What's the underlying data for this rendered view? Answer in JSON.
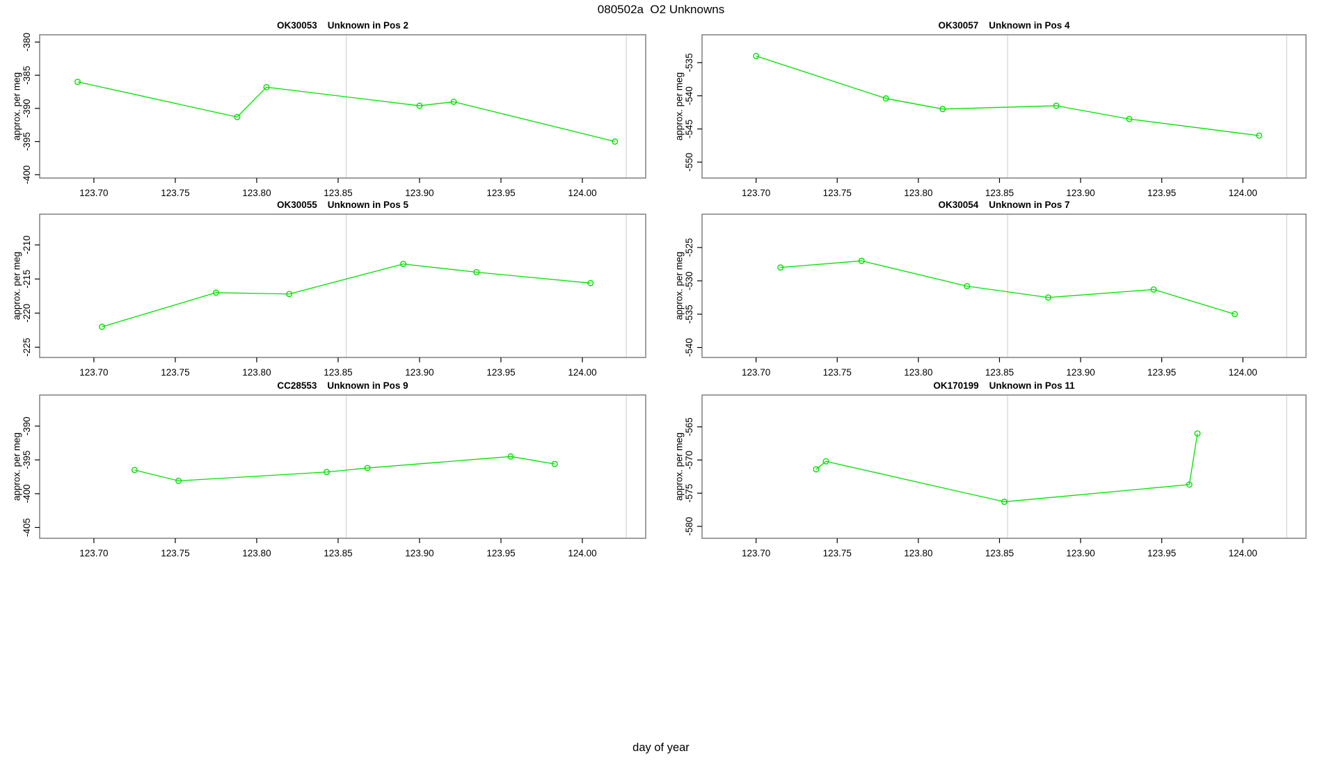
{
  "page_title": "080502a  O2 Unknowns",
  "x_axis_label": "day of year",
  "colors": {
    "series": "#00e100",
    "refline": "#d6d6d6",
    "box": "#878787",
    "tick": "#000000",
    "background": "#ffffff"
  },
  "x_axis": {
    "range": [
      123.6667,
      124.0389
    ],
    "ticks": [
      123.7,
      123.75,
      123.8,
      123.85,
      123.9,
      123.95,
      124.0
    ],
    "tick_labels": [
      "123.70",
      "123.75",
      "123.80",
      "123.85",
      "123.90",
      "123.95",
      "124.00"
    ],
    "reference_lines": [
      123.855,
      124.027
    ]
  },
  "chart_data": [
    {
      "type": "line",
      "sample_id": "OK30053",
      "position": "Unknown in Pos 2",
      "title": "OK30053    Unknown in Pos 2",
      "ylabel": "approx. per meg",
      "y_range": [
        -400.5,
        -378.9
      ],
      "y_ticks": [
        -380,
        -385,
        -390,
        -395,
        -400
      ],
      "y_tick_labels": [
        "-380",
        "-385",
        "-390",
        "-395",
        "-400"
      ],
      "x": [
        123.69,
        123.788,
        123.806,
        123.9,
        123.921,
        124.02
      ],
      "y": [
        -386.0,
        -391.3,
        -386.8,
        -389.6,
        -389.0,
        -395.0
      ]
    },
    {
      "type": "line",
      "sample_id": "OK30057",
      "position": "Unknown in Pos 4",
      "title": "OK30057    Unknown in Pos 4",
      "ylabel": "approx. per meg",
      "y_range": [
        -552.4,
        -530.8
      ],
      "y_ticks": [
        -535,
        -540,
        -545,
        -550
      ],
      "y_tick_labels": [
        "-535",
        "-540",
        "-545",
        "-550"
      ],
      "x": [
        123.7,
        123.78,
        123.815,
        123.885,
        123.93,
        124.01
      ],
      "y": [
        -534.0,
        -540.4,
        -542.0,
        -541.5,
        -543.5,
        -546.0
      ]
    },
    {
      "type": "line",
      "sample_id": "OK30055",
      "position": "Unknown in Pos 5",
      "title": "OK30055    Unknown in Pos 5",
      "ylabel": "approx. per meg",
      "y_range": [
        -226.5,
        -205.5
      ],
      "y_ticks": [
        -210,
        -215,
        -220,
        -225
      ],
      "y_tick_labels": [
        "-210",
        "-215",
        "-220",
        "-225"
      ],
      "x": [
        123.705,
        123.775,
        123.82,
        123.89,
        123.935,
        124.005
      ],
      "y": [
        -222.0,
        -217.0,
        -217.2,
        -212.8,
        -214.0,
        -215.6
      ]
    },
    {
      "type": "line",
      "sample_id": "OK30054",
      "position": "Unknown in Pos 7",
      "title": "OK30054    Unknown in Pos 7",
      "ylabel": "approx. per meg",
      "y_range": [
        -541.5,
        -520.0
      ],
      "y_ticks": [
        -525,
        -530,
        -535,
        -540
      ],
      "y_tick_labels": [
        "-525",
        "-530",
        "-535",
        "-540"
      ],
      "x": [
        123.715,
        123.765,
        123.83,
        123.88,
        123.945,
        123.995
      ],
      "y": [
        -528.0,
        -527.0,
        -530.8,
        -532.5,
        -531.3,
        -535.0
      ]
    },
    {
      "type": "line",
      "sample_id": "CC28553",
      "position": "Unknown in Pos 9",
      "title": "CC28553    Unknown in Pos 9",
      "ylabel": "approx. per meg",
      "y_range": [
        -406.6,
        -385.4
      ],
      "y_ticks": [
        -390,
        -395,
        -400,
        -405
      ],
      "y_tick_labels": [
        "-390",
        "-395",
        "-400",
        "-405"
      ],
      "x": [
        123.725,
        123.752,
        123.843,
        123.868,
        123.956,
        123.983
      ],
      "y": [
        -396.5,
        -398.1,
        -396.8,
        -396.2,
        -394.5,
        -395.6
      ]
    },
    {
      "type": "line",
      "sample_id": "OK170199",
      "position": "Unknown in Pos 11",
      "title": "OK170199    Unknown in Pos 11",
      "ylabel": "approx. per meg",
      "y_range": [
        -581.8,
        -560.2
      ],
      "y_ticks": [
        -565,
        -570,
        -575,
        -580
      ],
      "y_tick_labels": [
        "-565",
        "-570",
        "-575",
        "-580"
      ],
      "x": [
        123.737,
        123.743,
        123.853,
        123.967,
        123.972
      ],
      "y": [
        -571.4,
        -570.2,
        -576.3,
        -573.7,
        -566.0
      ]
    }
  ]
}
